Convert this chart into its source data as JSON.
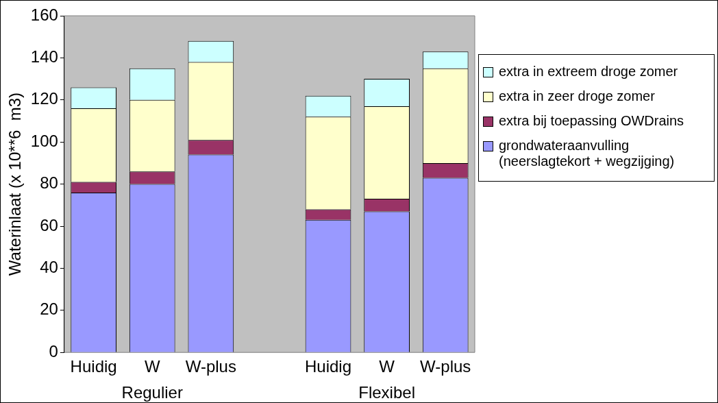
{
  "chart_data": {
    "type": "bar",
    "stacked": true,
    "ylabel": "Waterinlaat (x 10**6  m3)",
    "categories": [
      "Huidig",
      "W",
      "W-plus",
      null,
      "Huidig",
      "W",
      "W-plus"
    ],
    "series": [
      {
        "name": "grondwateraanvulling (neerslagtekort + wegzijging)",
        "color": "#9999ff",
        "values": [
          76,
          80,
          94,
          null,
          63,
          67,
          83
        ]
      },
      {
        "name": "extra bij toepassing OWDrains",
        "color": "#993366",
        "values": [
          5,
          6,
          7,
          null,
          5,
          6,
          7
        ]
      },
      {
        "name": "extra in zeer droge zomer",
        "color": "#ffffcc",
        "values": [
          35,
          34,
          37,
          null,
          44,
          44,
          45
        ]
      },
      {
        "name": "extra in extreem droge zomer",
        "color": "#ccffff",
        "values": [
          10,
          15,
          10,
          null,
          10,
          13,
          8
        ]
      }
    ],
    "ylim": [
      0,
      160
    ],
    "yticks": [
      0,
      20,
      40,
      60,
      80,
      100,
      120,
      140,
      160
    ],
    "grid": false,
    "legend": "right",
    "annotations": [
      "Regulier",
      "Flexibel"
    ]
  }
}
